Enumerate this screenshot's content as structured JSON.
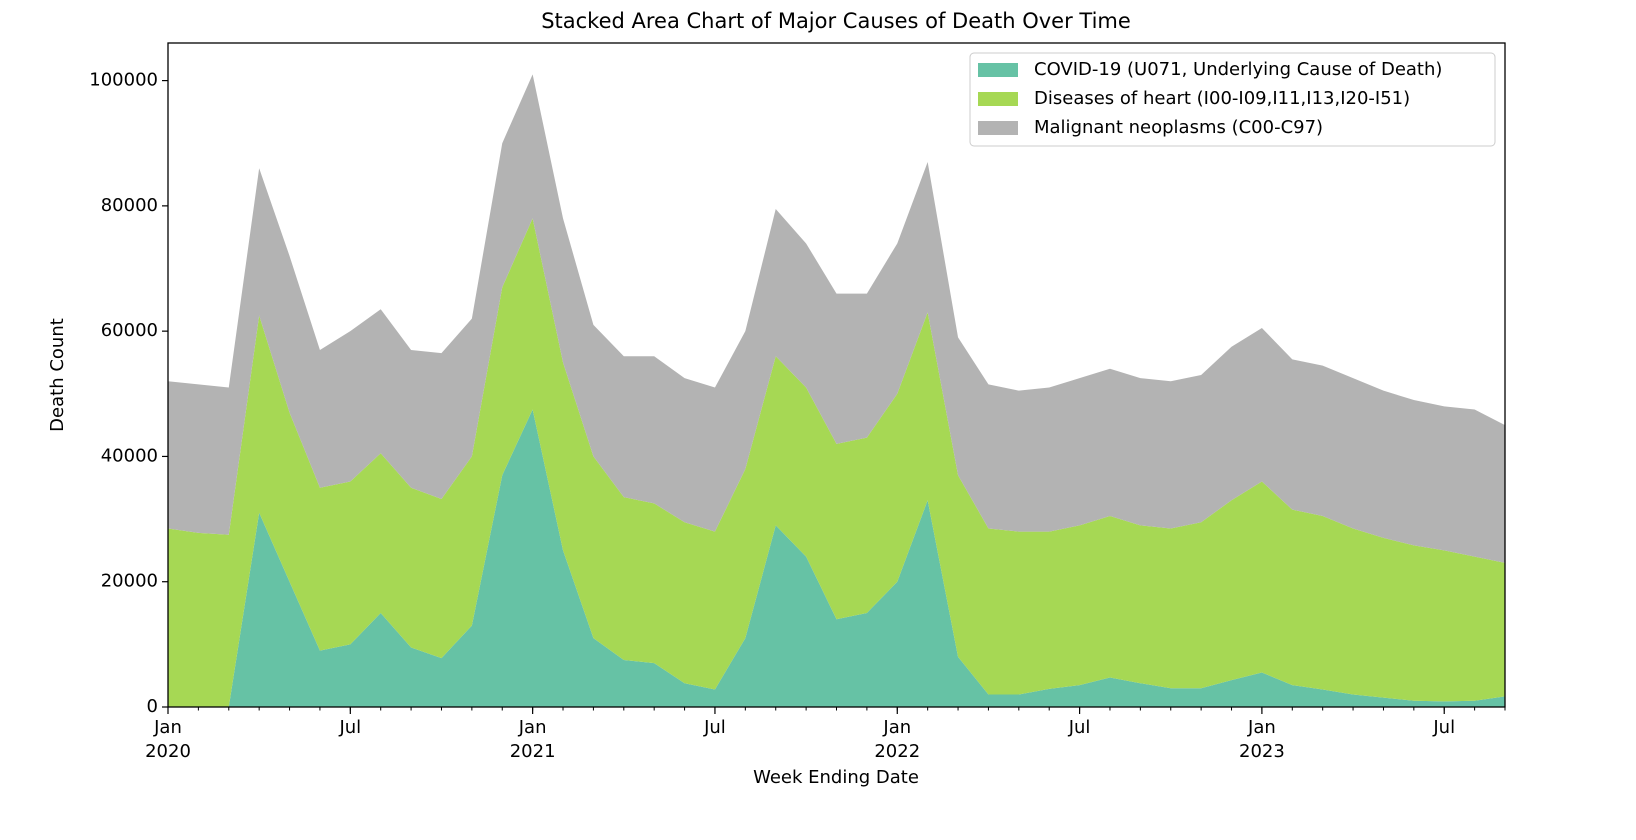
{
  "chart_data": {
    "type": "stacked_area",
    "title": "Stacked Area Chart of Major Causes of Death Over Time",
    "xlabel": "Week Ending Date",
    "ylabel": "Death Count",
    "x": [
      "2020-01",
      "2020-02",
      "2020-03",
      "2020-04",
      "2020-05",
      "2020-06",
      "2020-07",
      "2020-08",
      "2020-09",
      "2020-10",
      "2020-11",
      "2020-12",
      "2021-01",
      "2021-02",
      "2021-03",
      "2021-04",
      "2021-05",
      "2021-06",
      "2021-07",
      "2021-08",
      "2021-09",
      "2021-10",
      "2021-11",
      "2021-12",
      "2022-01",
      "2022-02",
      "2022-03",
      "2022-04",
      "2022-05",
      "2022-06",
      "2022-07",
      "2022-08",
      "2022-09",
      "2022-10",
      "2022-11",
      "2022-12",
      "2023-01",
      "2023-02",
      "2023-03",
      "2023-04",
      "2023-05",
      "2023-06",
      "2023-07",
      "2023-08",
      "2023-09"
    ],
    "series": [
      {
        "name": "COVID-19 (U071, Underlying Cause of Death)",
        "color": "#66c2a5",
        "values": [
          0,
          0,
          0,
          31000,
          20000,
          9000,
          10000,
          15000,
          9500,
          7800,
          13000,
          37000,
          47500,
          25000,
          11000,
          7500,
          7000,
          3800,
          2800,
          11000,
          29000,
          24000,
          14000,
          15000,
          20000,
          33000,
          8000,
          2000,
          2000,
          2900,
          3500,
          4700,
          3800,
          3000,
          3000,
          4300,
          5500,
          3500,
          2800,
          2000,
          1500,
          1000,
          900,
          1000,
          1700
        ]
      },
      {
        "name": "Diseases of heart (I00-I09,I11,I13,I20-I51)",
        "color": "#a6d854",
        "values": [
          28500,
          27800,
          27500,
          31500,
          27000,
          26000,
          26000,
          25500,
          25500,
          25400,
          27000,
          30000,
          30500,
          30000,
          29000,
          26000,
          25500,
          25700,
          25200,
          27000,
          27000,
          27000,
          28000,
          28000,
          30000,
          30000,
          29000,
          26500,
          26000,
          25100,
          25500,
          25800,
          25200,
          25500,
          26500,
          28700,
          30500,
          28000,
          27700,
          26500,
          25500,
          24800,
          24100,
          23000,
          21300
        ]
      },
      {
        "name": "Malignant neoplasms (C00-C97)",
        "color": "#b3b3b3",
        "values": [
          23500,
          23700,
          23500,
          23500,
          25000,
          22000,
          24000,
          23000,
          22000,
          23300,
          22000,
          23000,
          23000,
          23000,
          21000,
          22500,
          23500,
          23000,
          23000,
          22000,
          23500,
          23000,
          24000,
          23000,
          24000,
          24000,
          22000,
          23000,
          22500,
          23000,
          23500,
          23500,
          23500,
          23500,
          23500,
          24500,
          24500,
          24000,
          24000,
          24000,
          23500,
          23200,
          23000,
          23500,
          22000
        ]
      }
    ],
    "xlim": [
      "2020-01",
      "2023-09"
    ],
    "xticks": [
      {
        "value": "2020-01",
        "label": "Jan\n2020"
      },
      {
        "value": "2020-07",
        "label": "Jul"
      },
      {
        "value": "2021-01",
        "label": "Jan\n2021"
      },
      {
        "value": "2021-07",
        "label": "Jul"
      },
      {
        "value": "2022-01",
        "label": "Jan\n2022"
      },
      {
        "value": "2022-07",
        "label": "Jul"
      },
      {
        "value": "2023-01",
        "label": "Jan\n2023"
      },
      {
        "value": "2023-07",
        "label": "Jul"
      }
    ],
    "ylim": [
      0,
      106000
    ],
    "yticks": [
      0,
      20000,
      40000,
      60000,
      80000,
      100000
    ],
    "legend": "upper right"
  }
}
